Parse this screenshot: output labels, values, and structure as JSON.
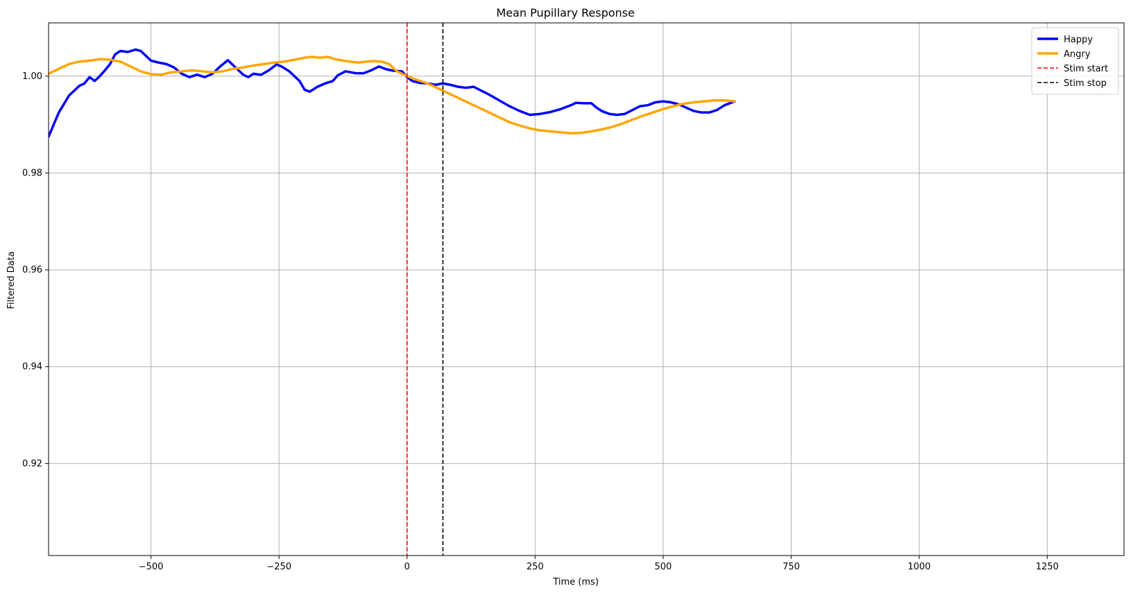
{
  "chart_data": {
    "type": "line",
    "title": "Mean Pupillary Response",
    "xlabel": "Time (ms)",
    "ylabel": "Filtered Data",
    "xlim": [
      -700,
      1400
    ],
    "ylim": [
      0.901,
      1.011
    ],
    "x_ticks": [
      -500,
      -250,
      0,
      250,
      500,
      750,
      1000,
      1250
    ],
    "x_tick_labels": [
      "−500",
      "−250",
      "0",
      "250",
      "500",
      "750",
      "1000",
      "1250"
    ],
    "y_ticks": [
      0.92,
      0.94,
      0.96,
      0.98,
      1.0
    ],
    "y_tick_labels": [
      "0.92",
      "0.94",
      "0.96",
      "0.98",
      "1.00"
    ],
    "grid": true,
    "legend_position": "top-right",
    "series": [
      {
        "name": "Happy",
        "color": "#0000ff",
        "style": "solid",
        "points": [
          [
            -700,
            0.9875
          ],
          [
            -680,
            0.9925
          ],
          [
            -660,
            0.996
          ],
          [
            -640,
            0.998
          ],
          [
            -630,
            0.9985
          ],
          [
            -620,
            0.9998
          ],
          [
            -610,
            0.999
          ],
          [
            -600,
            1.0
          ],
          [
            -590,
            1.0012
          ],
          [
            -580,
            1.0025
          ],
          [
            -570,
            1.0045
          ],
          [
            -560,
            1.0052
          ],
          [
            -545,
            1.005
          ],
          [
            -530,
            1.0055
          ],
          [
            -520,
            1.0052
          ],
          [
            -510,
            1.0042
          ],
          [
            -500,
            1.0032
          ],
          [
            -485,
            1.0028
          ],
          [
            -470,
            1.0025
          ],
          [
            -455,
            1.0018
          ],
          [
            -440,
            1.0005
          ],
          [
            -425,
            0.9998
          ],
          [
            -410,
            1.0003
          ],
          [
            -395,
            0.9998
          ],
          [
            -380,
            1.0005
          ],
          [
            -365,
            1.002
          ],
          [
            -350,
            1.0033
          ],
          [
            -335,
            1.0018
          ],
          [
            -320,
            1.0003
          ],
          [
            -310,
            0.9998
          ],
          [
            -300,
            1.0005
          ],
          [
            -285,
            1.0003
          ],
          [
            -270,
            1.0012
          ],
          [
            -255,
            1.0024
          ],
          [
            -245,
            1.002
          ],
          [
            -230,
            1.001
          ],
          [
            -220,
            1.0
          ],
          [
            -210,
            0.999
          ],
          [
            -200,
            0.9972
          ],
          [
            -190,
            0.9968
          ],
          [
            -175,
            0.9978
          ],
          [
            -160,
            0.9985
          ],
          [
            -145,
            0.999
          ],
          [
            -135,
            1.0002
          ],
          [
            -120,
            1.001
          ],
          [
            -100,
            1.0006
          ],
          [
            -85,
            1.0006
          ],
          [
            -70,
            1.0012
          ],
          [
            -55,
            1.002
          ],
          [
            -40,
            1.0014
          ],
          [
            -25,
            1.0011
          ],
          [
            -10,
            1.001
          ],
          [
            0,
            0.9998
          ],
          [
            10,
            0.999
          ],
          [
            25,
            0.9986
          ],
          [
            40,
            0.9985
          ],
          [
            55,
            0.9982
          ],
          [
            70,
            0.9985
          ],
          [
            85,
            0.9982
          ],
          [
            100,
            0.9978
          ],
          [
            115,
            0.9976
          ],
          [
            130,
            0.9978
          ],
          [
            145,
            0.997
          ],
          [
            160,
            0.9962
          ],
          [
            180,
            0.995
          ],
          [
            200,
            0.9938
          ],
          [
            220,
            0.9928
          ],
          [
            240,
            0.992
          ],
          [
            260,
            0.9922
          ],
          [
            280,
            0.9926
          ],
          [
            300,
            0.9932
          ],
          [
            320,
            0.994
          ],
          [
            330,
            0.9945
          ],
          [
            345,
            0.9944
          ],
          [
            360,
            0.9944
          ],
          [
            370,
            0.9935
          ],
          [
            380,
            0.9928
          ],
          [
            395,
            0.9922
          ],
          [
            410,
            0.992
          ],
          [
            425,
            0.9922
          ],
          [
            440,
            0.993
          ],
          [
            455,
            0.9938
          ],
          [
            470,
            0.994
          ],
          [
            485,
            0.9946
          ],
          [
            500,
            0.9948
          ],
          [
            515,
            0.9946
          ],
          [
            530,
            0.9942
          ],
          [
            545,
            0.9935
          ],
          [
            560,
            0.9928
          ],
          [
            575,
            0.9925
          ],
          [
            590,
            0.9925
          ],
          [
            605,
            0.993
          ],
          [
            620,
            0.994
          ],
          [
            640,
            0.9948
          ]
        ]
      },
      {
        "name": "Angry",
        "color": "#ffa500",
        "style": "solid",
        "points": [
          [
            -700,
            1.0005
          ],
          [
            -680,
            1.0015
          ],
          [
            -660,
            1.0025
          ],
          [
            -640,
            1.003
          ],
          [
            -620,
            1.0032
          ],
          [
            -600,
            1.0035
          ],
          [
            -580,
            1.0034
          ],
          [
            -560,
            1.003
          ],
          [
            -540,
            1.002
          ],
          [
            -520,
            1.001
          ],
          [
            -500,
            1.0004
          ],
          [
            -480,
            1.0003
          ],
          [
            -460,
            1.0008
          ],
          [
            -440,
            1.001
          ],
          [
            -420,
            1.0012
          ],
          [
            -400,
            1.001
          ],
          [
            -380,
            1.0008
          ],
          [
            -360,
            1.001
          ],
          [
            -340,
            1.0015
          ],
          [
            -320,
            1.0018
          ],
          [
            -300,
            1.0022
          ],
          [
            -280,
            1.0025
          ],
          [
            -260,
            1.0028
          ],
          [
            -240,
            1.003
          ],
          [
            -220,
            1.0034
          ],
          [
            -200,
            1.0038
          ],
          [
            -185,
            1.004
          ],
          [
            -170,
            1.0038
          ],
          [
            -155,
            1.004
          ],
          [
            -140,
            1.0035
          ],
          [
            -125,
            1.0032
          ],
          [
            -110,
            1.003
          ],
          [
            -95,
            1.0028
          ],
          [
            -80,
            1.003
          ],
          [
            -65,
            1.0031
          ],
          [
            -50,
            1.003
          ],
          [
            -35,
            1.0025
          ],
          [
            -20,
            1.001
          ],
          [
            0,
            1.0
          ],
          [
            20,
            0.9992
          ],
          [
            40,
            0.9985
          ],
          [
            60,
            0.9975
          ],
          [
            80,
            0.9965
          ],
          [
            100,
            0.9955
          ],
          [
            120,
            0.9945
          ],
          [
            140,
            0.9935
          ],
          [
            160,
            0.9925
          ],
          [
            180,
            0.9915
          ],
          [
            200,
            0.9905
          ],
          [
            220,
            0.9898
          ],
          [
            240,
            0.9892
          ],
          [
            260,
            0.9888
          ],
          [
            280,
            0.9886
          ],
          [
            300,
            0.9884
          ],
          [
            320,
            0.9882
          ],
          [
            340,
            0.9883
          ],
          [
            360,
            0.9886
          ],
          [
            380,
            0.989
          ],
          [
            400,
            0.9895
          ],
          [
            420,
            0.9902
          ],
          [
            440,
            0.991
          ],
          [
            460,
            0.9918
          ],
          [
            480,
            0.9925
          ],
          [
            500,
            0.9932
          ],
          [
            520,
            0.9938
          ],
          [
            540,
            0.9943
          ],
          [
            560,
            0.9946
          ],
          [
            580,
            0.9948
          ],
          [
            600,
            0.995
          ],
          [
            620,
            0.995
          ],
          [
            640,
            0.9948
          ]
        ]
      }
    ],
    "vlines": [
      {
        "name": "Stim start",
        "x": 0,
        "color": "#ff0000",
        "style": "dashed"
      },
      {
        "name": "Stim stop",
        "x": 70,
        "color": "#000000",
        "style": "dashed"
      }
    ]
  }
}
